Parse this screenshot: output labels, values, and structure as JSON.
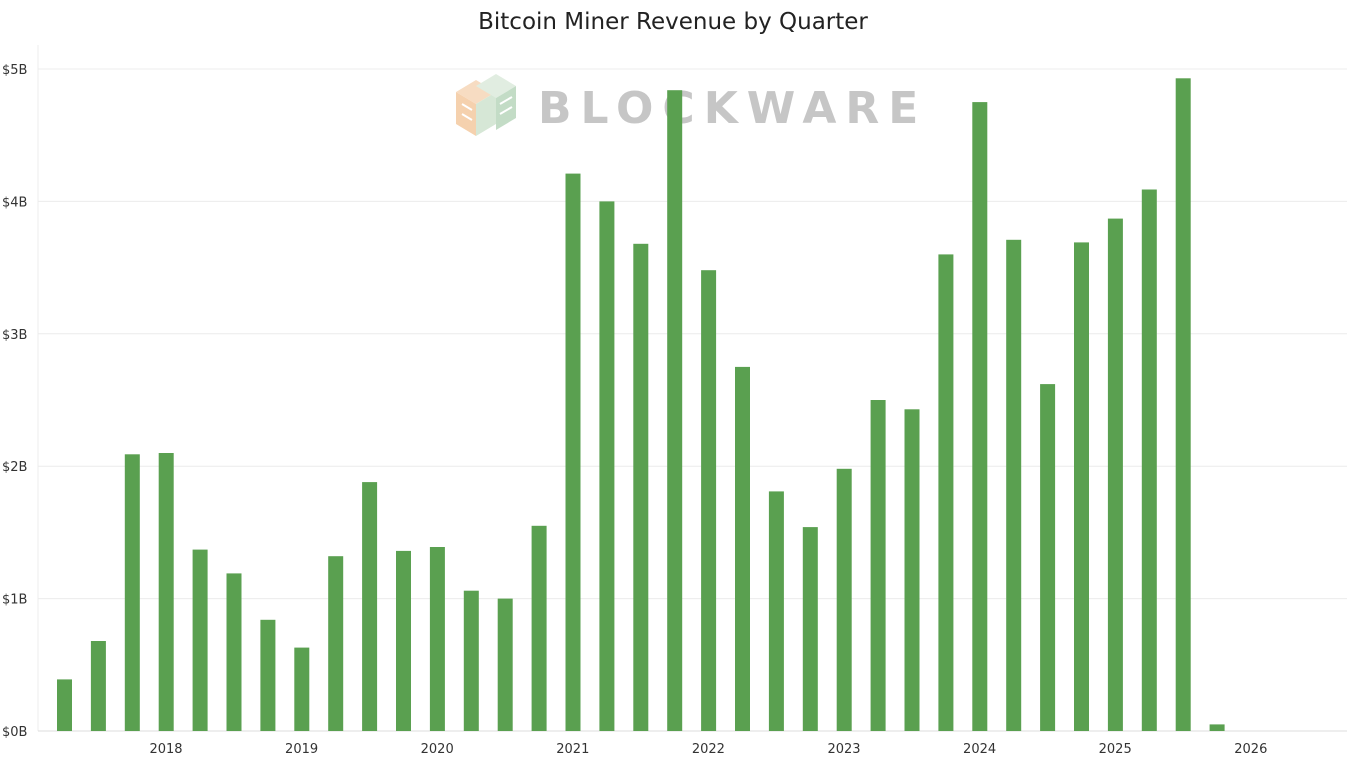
{
  "chart_data": {
    "type": "bar",
    "title": "Bitcoin Miner Revenue by Quarter",
    "xlabel": "",
    "ylabel": "",
    "ylim": [
      0,
      5.1
    ],
    "y_ticks": [
      0,
      1,
      2,
      3,
      4,
      5
    ],
    "y_tick_labels": [
      "$0B",
      "$1B",
      "$2B",
      "$3B",
      "$4B",
      "$5B"
    ],
    "x_tick_labels": [
      "2018",
      "2019",
      "2020",
      "2021",
      "2022",
      "2023",
      "2024",
      "2025",
      "2026"
    ],
    "grid": true,
    "legend": "none",
    "bar_color": "#5aa050",
    "categories": [
      "2017 Q2",
      "2017 Q3",
      "2017 Q4",
      "2018 Q1",
      "2018 Q2",
      "2018 Q3",
      "2018 Q4",
      "2019 Q1",
      "2019 Q2",
      "2019 Q3",
      "2019 Q4",
      "2020 Q1",
      "2020 Q2",
      "2020 Q3",
      "2020 Q4",
      "2021 Q1",
      "2021 Q2",
      "2021 Q3",
      "2021 Q4",
      "2022 Q1",
      "2022 Q2",
      "2022 Q3",
      "2022 Q4",
      "2023 Q1",
      "2023 Q2",
      "2023 Q3",
      "2023 Q4",
      "2024 Q1",
      "2024 Q2",
      "2024 Q3",
      "2024 Q4",
      "2025 Q1",
      "2025 Q2",
      "2025 Q3",
      "2025 Q4"
    ],
    "values": [
      0.39,
      0.68,
      2.09,
      2.1,
      1.37,
      1.19,
      0.84,
      0.63,
      1.32,
      1.88,
      1.36,
      1.39,
      1.06,
      1.0,
      1.55,
      4.21,
      4.0,
      3.68,
      4.84,
      3.48,
      2.75,
      1.81,
      1.54,
      1.98,
      2.5,
      2.43,
      3.6,
      4.75,
      3.71,
      2.62,
      3.69,
      3.87,
      4.09,
      4.93,
      0.05
    ],
    "watermark": "BLOCKWARE"
  }
}
